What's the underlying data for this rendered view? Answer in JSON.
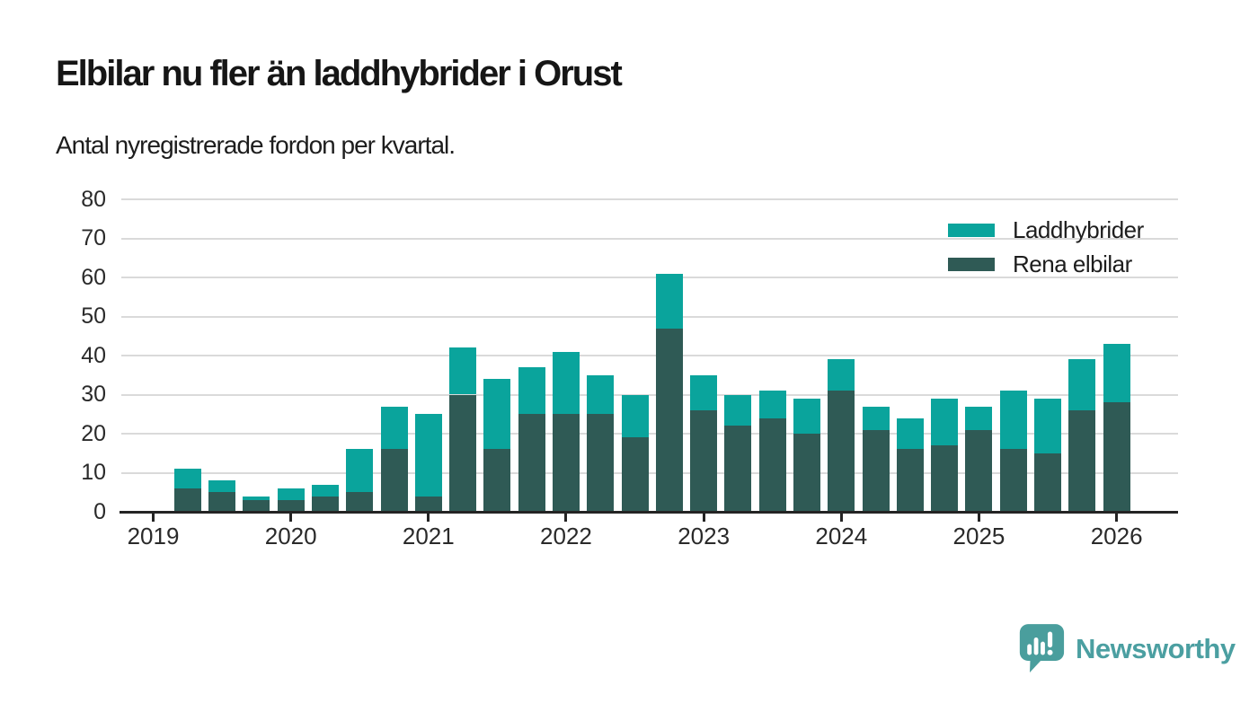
{
  "header": {
    "title": "Elbilar nu fler än laddhybrider i Orust",
    "subtitle": "Antal nyregistrerade fordon per kvartal."
  },
  "legend": {
    "items": [
      {
        "label": "Laddhybrider",
        "color": "#0aa49c"
      },
      {
        "label": "Rena elbilar",
        "color": "#2f5a55"
      }
    ]
  },
  "footer": {
    "brand": "Newsworthy",
    "logo_color": "#4a9e9d"
  },
  "chart_data": {
    "type": "bar",
    "stacked": true,
    "title": "Elbilar nu fler än laddhybrider i Orust",
    "subtitle": "Antal nyregistrerade fordon per kvartal.",
    "grid": true,
    "legend_position": "top-right",
    "ylim": [
      0,
      80
    ],
    "y_ticks": [
      0,
      10,
      20,
      30,
      40,
      50,
      60,
      70,
      80
    ],
    "year_labels": [
      "2019",
      "2020",
      "2021",
      "2022",
      "2023",
      "2024",
      "2025",
      "2026"
    ],
    "categories": [
      "2019 Q1",
      "2019 Q2",
      "2019 Q3",
      "2019 Q4",
      "2020 Q1",
      "2020 Q2",
      "2020 Q3",
      "2020 Q4",
      "2021 Q1",
      "2021 Q2",
      "2021 Q3",
      "2021 Q4",
      "2022 Q1",
      "2022 Q2",
      "2022 Q3",
      "2022 Q4",
      "2023 Q1",
      "2023 Q2",
      "2023 Q3",
      "2023 Q4",
      "2024 Q1",
      "2024 Q2",
      "2024 Q3",
      "2024 Q4",
      "2025 Q1",
      "2025 Q2",
      "2025 Q3",
      "2025 Q4",
      "2026 Q1"
    ],
    "series": [
      {
        "name": "Rena elbilar",
        "color": "#2f5a55",
        "values": [
          0,
          6,
          5,
          3,
          3,
          4,
          5,
          16,
          4,
          30,
          16,
          25,
          25,
          25,
          19,
          47,
          26,
          22,
          24,
          20,
          31,
          21,
          16,
          17,
          21,
          16,
          15,
          26,
          28
        ]
      },
      {
        "name": "Laddhybrider",
        "color": "#0aa49c",
        "values": [
          0,
          5,
          3,
          1,
          3,
          3,
          11,
          11,
          21,
          12,
          18,
          12,
          16,
          10,
          11,
          14,
          9,
          8,
          7,
          9,
          8,
          6,
          8,
          12,
          6,
          15,
          14,
          13,
          15
        ]
      }
    ],
    "totals": [
      0,
      11,
      8,
      4,
      6,
      7,
      16,
      27,
      25,
      42,
      34,
      37,
      41,
      35,
      30,
      61,
      35,
      30,
      31,
      29,
      39,
      27,
      24,
      29,
      27,
      31,
      29,
      39,
      43
    ]
  }
}
